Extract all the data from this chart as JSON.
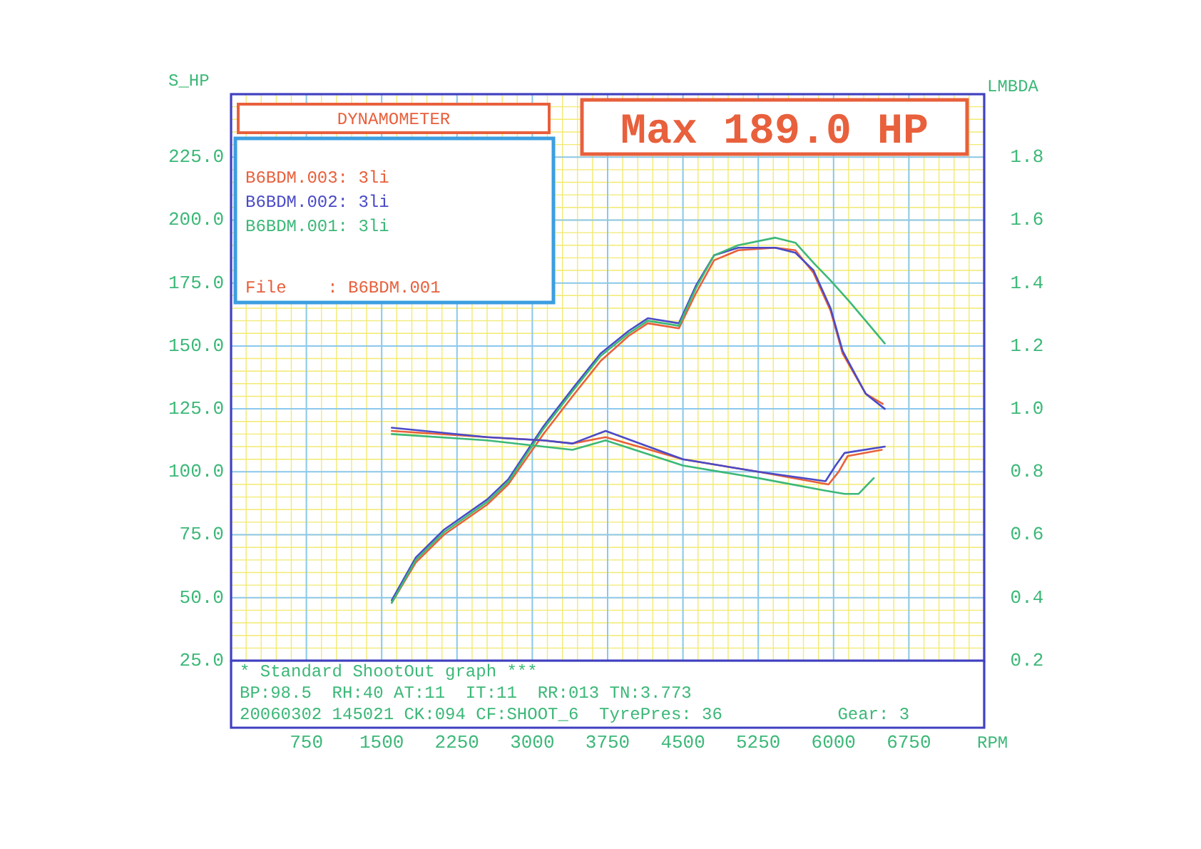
{
  "chart_data": {
    "type": "line",
    "title": "DYNAMOMETER",
    "ylabel": "S_HP",
    "y2label": "LMBDA",
    "xlabel": "RPM",
    "annotations": [
      "Max 189.0 HP",
      "File    : B6BDM.001",
      "* Standard ShootOut graph ***",
      "BP:98.5  RH:40 AT:11  IT:11  RR:013 TN:3.773",
      "20060302 145021 CK:094 CF:SHOOT_6  TyrePres: 36",
      " Gear: 3"
    ],
    "xlim": [
      0,
      7500
    ],
    "xticks": [
      750,
      1500,
      2250,
      3000,
      3750,
      4500,
      5250,
      6000,
      6750
    ],
    "ylim": [
      25,
      250
    ],
    "yticks": [
      {
        "value": 25,
        "label": "25.0"
      },
      {
        "value": 50,
        "label": "50.0"
      },
      {
        "value": 75,
        "label": "75.0"
      },
      {
        "value": 100,
        "label": "100.0"
      },
      {
        "value": 125,
        "label": "125.0"
      },
      {
        "value": 150,
        "label": "150.0"
      },
      {
        "value": 175,
        "label": "175.0"
      },
      {
        "value": 200,
        "label": "200.0"
      },
      {
        "value": 225,
        "label": "225.0"
      }
    ],
    "y2lim": [
      0.2,
      2.0
    ],
    "y2ticks": [
      {
        "value": 0.2,
        "label": "0.2"
      },
      {
        "value": 0.4,
        "label": "0.4"
      },
      {
        "value": 0.6,
        "label": "0.6"
      },
      {
        "value": 0.8,
        "label": "0.8"
      },
      {
        "value": 1.0,
        "label": "1.0"
      },
      {
        "value": 1.2,
        "label": "1.2"
      },
      {
        "value": 1.4,
        "label": "1.4"
      },
      {
        "value": 1.6,
        "label": "1.6"
      },
      {
        "value": 1.8,
        "label": "1.8"
      }
    ],
    "grid": true,
    "legend": "top left",
    "line_style": "solid",
    "series": [
      {
        "name": "B6BDM.003: 3li",
        "color": "#e8603c",
        "x": [
          1600,
          1840,
          2120,
          2550,
          2760,
          3110,
          3400,
          3680,
          3960,
          4150,
          4460,
          4630,
          4810,
          5050,
          5420,
          5620,
          5800,
          5970,
          6090,
          6320,
          6490
        ],
        "values": [
          48,
          64,
          75,
          87,
          95,
          115,
          130,
          144,
          154,
          159,
          157,
          171,
          184,
          188,
          189,
          188,
          179,
          164,
          147,
          131,
          127
        ]
      },
      {
        "name": "B6BDM.002: 3li",
        "color": "#4a4ac8",
        "x": [
          1600,
          1840,
          2120,
          2550,
          2760,
          3110,
          3400,
          3680,
          3960,
          4150,
          4460,
          4630,
          4810,
          5050,
          5420,
          5620,
          5800,
          5970,
          6090,
          6320,
          6510
        ],
        "values": [
          49,
          66,
          77,
          89,
          97,
          118,
          133,
          147,
          156,
          161,
          159,
          174,
          186,
          189,
          189,
          187,
          180,
          165,
          148,
          131,
          125
        ]
      },
      {
        "name": "B6BDM.001: 3li",
        "color": "#3cb878",
        "x": [
          1600,
          1840,
          2120,
          2550,
          2760,
          3110,
          3400,
          3680,
          3960,
          4150,
          4460,
          4630,
          4810,
          5050,
          5420,
          5620,
          5800,
          5970,
          6150,
          6320,
          6510
        ],
        "values": [
          48,
          65,
          76,
          88,
          96,
          117,
          132,
          146,
          155,
          160,
          158,
          173,
          186,
          190,
          193,
          191,
          183,
          176,
          168,
          160,
          151
        ]
      },
      {
        "color": "#e8603c",
        "axis": "y2",
        "x": [
          1600,
          2550,
          3110,
          3400,
          3730,
          4500,
          5250,
          5950,
          6050,
          6140,
          6480
        ],
        "values": [
          0.93,
          0.91,
          0.9,
          0.89,
          0.91,
          0.84,
          0.8,
          0.76,
          0.8,
          0.85,
          0.87
        ]
      },
      {
        "color": "#4a4ac8",
        "axis": "y2",
        "x": [
          1600,
          2550,
          3110,
          3400,
          3730,
          4500,
          5250,
          5920,
          6020,
          6110,
          6510
        ],
        "values": [
          0.94,
          0.91,
          0.9,
          0.89,
          0.93,
          0.84,
          0.8,
          0.77,
          0.82,
          0.86,
          0.88
        ]
      },
      {
        "color": "#3cb878",
        "axis": "y2",
        "x": [
          1600,
          2550,
          3110,
          3400,
          3730,
          4500,
          5250,
          5920,
          6110,
          6250,
          6400
        ],
        "values": [
          0.92,
          0.9,
          0.88,
          0.87,
          0.9,
          0.82,
          0.78,
          0.74,
          0.73,
          0.73,
          0.78
        ]
      }
    ]
  }
}
